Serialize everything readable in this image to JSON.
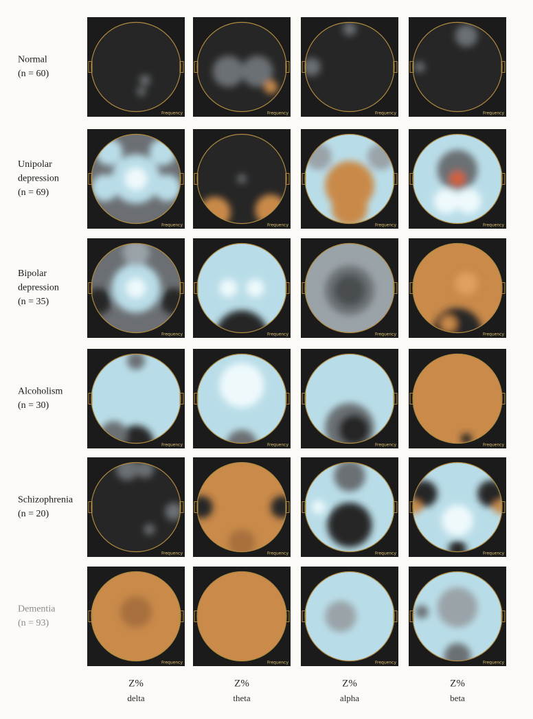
{
  "rows": [
    {
      "lines": [
        "Normal",
        "(n = 60)"
      ]
    },
    {
      "lines": [
        "Unipolar",
        "depression",
        "(n = 69)"
      ]
    },
    {
      "lines": [
        "Bipolar",
        "depression",
        "(n = 35)"
      ]
    },
    {
      "lines": [
        "Alcoholism",
        "(n = 30)"
      ]
    },
    {
      "lines": [
        "Schizophrenia",
        "(n = 20)"
      ]
    },
    {
      "lines": [
        "Dementia",
        "(n = 93)"
      ]
    }
  ],
  "columns": [
    {
      "top": "Z%",
      "bottom": "delta"
    },
    {
      "top": "Z%",
      "bottom": "theta"
    },
    {
      "top": "Z%",
      "bottom": "alpha"
    },
    {
      "top": "Z%",
      "bottom": "beta"
    }
  ],
  "panel_caption": "Frequency"
}
